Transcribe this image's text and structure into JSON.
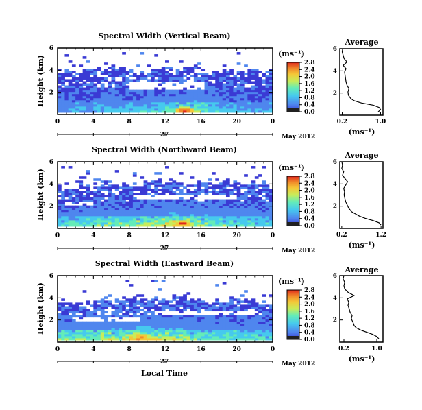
{
  "figure": {
    "xlabel": "Local Time",
    "date_label": "May 2012",
    "day_label": "27",
    "avg_title": "Average",
    "unit_label": "(ms⁻¹)"
  },
  "colormap": [
    "#e7e7e7",
    "#3a3ad4",
    "#4f86ee",
    "#46c9ee",
    "#64ecb8",
    "#c8ec5a",
    "#f4c838",
    "#f08a2a",
    "#e0281c"
  ],
  "chart_data": [
    {
      "type": "heatmap",
      "title": "Spectral Width (Vertical Beam)",
      "ylabel": "Height (km)",
      "xlim": [
        0,
        24
      ],
      "ylim": [
        0,
        6
      ],
      "xticks": [
        "0",
        "4",
        "8",
        "12",
        "16",
        "20",
        "0"
      ],
      "yticks": [
        "6",
        "4",
        "2"
      ],
      "colorbar": {
        "range": [
          0,
          2.8
        ],
        "ticks": [
          "2.8",
          "2.4",
          "2.0",
          "1.6",
          "1.2",
          "0.8",
          "0.4",
          "0.0"
        ]
      },
      "top_profile": [
        3.8,
        3.9,
        3.8,
        4.0,
        4.2,
        4.5,
        4.4,
        4.1,
        3.9,
        3.8,
        4.0,
        4.2,
        4.1,
        4.0,
        4.1,
        4.3,
        4.0,
        3.8,
        3.9,
        4.0,
        4.1,
        4.0,
        3.9,
        3.8,
        3.9
      ],
      "level": [
        0.35,
        0.4,
        0.45,
        0.4,
        0.5,
        0.55,
        0.55,
        0.5,
        0.6,
        0.7,
        0.75,
        0.8,
        0.9,
        1.0,
        1.1,
        1.2,
        0.9,
        0.7,
        0.6,
        0.5,
        0.5,
        0.45,
        0.4,
        0.4,
        0.35
      ],
      "hotspot": [
        14.2,
        0.35,
        2.8
      ],
      "gaps": [
        [
          8.0,
          16.5,
          2.3,
          3.0
        ]
      ],
      "average": {
        "title": "Average",
        "xlabel": "(ms⁻¹)",
        "xlim": [
          0.15,
          1.05
        ],
        "ylim": [
          0,
          6
        ],
        "xticks": [
          "0.2",
          "1.0"
        ],
        "xtick_values": [
          0.2,
          1.0
        ],
        "yticks": [
          "6",
          "4",
          "2"
        ],
        "height": [
          0.3,
          0.5,
          0.7,
          0.9,
          1.1,
          1.3,
          1.5,
          1.8,
          2.1,
          2.4,
          2.7,
          3.0,
          3.3,
          3.6,
          3.9,
          4.2,
          4.5,
          4.8,
          5.1,
          5.4,
          5.7,
          6.0
        ],
        "width": [
          0.95,
          1.0,
          0.97,
          0.85,
          0.6,
          0.45,
          0.38,
          0.33,
          0.32,
          0.34,
          0.3,
          0.28,
          0.27,
          0.26,
          0.25,
          0.28,
          0.22,
          0.3,
          0.24,
          0.22,
          0.2,
          0.21
        ]
      }
    },
    {
      "type": "heatmap",
      "title": "Spectral Width (Northward Beam)",
      "ylabel": "Height (km)",
      "xlim": [
        0,
        24
      ],
      "ylim": [
        0,
        6
      ],
      "xticks": [
        "0",
        "4",
        "8",
        "12",
        "16",
        "20",
        "0"
      ],
      "yticks": [
        "6",
        "4",
        "2"
      ],
      "colorbar": {
        "range": [
          0,
          2.8
        ],
        "ticks": [
          "2.8",
          "2.4",
          "2.0",
          "1.6",
          "1.2",
          "0.8",
          "0.4",
          "0.0"
        ]
      },
      "top_profile": [
        3.6,
        3.7,
        3.8,
        3.9,
        4.0,
        4.0,
        3.9,
        3.8,
        3.9,
        4.0,
        4.1,
        4.2,
        4.1,
        4.0,
        3.9,
        4.0,
        4.1,
        4.2,
        4.3,
        4.2,
        4.1,
        4.0,
        3.9,
        3.8,
        3.7
      ],
      "level": [
        0.8,
        0.85,
        0.8,
        0.9,
        0.95,
        1.0,
        1.0,
        0.95,
        1.0,
        1.1,
        1.2,
        1.3,
        1.4,
        1.5,
        1.5,
        1.3,
        1.1,
        1.0,
        0.9,
        0.85,
        0.8,
        0.8,
        0.75,
        0.7,
        0.7
      ],
      "hotspot": [
        14.0,
        0.45,
        2.8
      ],
      "gaps": [
        [
          1.0,
          4.0,
          2.1,
          2.4
        ],
        [
          9.0,
          20.0,
          2.6,
          3.0
        ]
      ],
      "average": {
        "title": "Average",
        "xlabel": "(ms⁻¹)",
        "xlim": [
          0.15,
          1.25
        ],
        "ylim": [
          0,
          6
        ],
        "xticks": [
          "0.2",
          "1.2"
        ],
        "xtick_values": [
          0.2,
          1.2
        ],
        "yticks": [
          "6",
          "4",
          "2"
        ],
        "height": [
          0.3,
          0.5,
          0.7,
          0.9,
          1.1,
          1.3,
          1.5,
          1.8,
          2.1,
          2.4,
          2.7,
          3.0,
          3.3,
          3.6,
          3.9,
          4.2,
          4.5,
          4.8,
          5.1,
          5.4,
          5.7,
          6.0
        ],
        "width": [
          1.2,
          1.15,
          1.0,
          0.8,
          0.65,
          0.55,
          0.45,
          0.38,
          0.34,
          0.3,
          0.28,
          0.26,
          0.27,
          0.25,
          0.3,
          0.35,
          0.28,
          0.22,
          0.25,
          0.2,
          0.22,
          0.2
        ]
      }
    },
    {
      "type": "heatmap",
      "title": "Spectral Width (Eastward Beam)",
      "ylabel": "Height (km)",
      "xlim": [
        0,
        24
      ],
      "ylim": [
        0,
        6
      ],
      "xticks": [
        "0",
        "4",
        "8",
        "12",
        "16",
        "20",
        "0"
      ],
      "yticks": [
        "6",
        "4",
        "2"
      ],
      "colorbar": {
        "range": [
          0,
          2.8
        ],
        "ticks": [
          "2.8",
          "2.4",
          "2.0",
          "1.6",
          "1.2",
          "0.8",
          "0.4",
          "0.0"
        ]
      },
      "top_profile": [
        3.4,
        3.5,
        3.6,
        3.5,
        3.7,
        3.8,
        3.9,
        4.0,
        4.1,
        4.2,
        4.0,
        3.9,
        4.0,
        4.3,
        4.1,
        3.9,
        3.8,
        3.7,
        3.8,
        3.9,
        3.8,
        3.7,
        3.6,
        3.5,
        3.6
      ],
      "level": [
        1.0,
        1.05,
        1.1,
        1.0,
        1.1,
        1.2,
        1.2,
        1.3,
        1.5,
        1.6,
        1.5,
        1.4,
        1.3,
        1.3,
        1.2,
        1.1,
        1.0,
        1.0,
        0.9,
        0.9,
        0.85,
        0.8,
        0.8,
        0.75,
        0.7
      ],
      "hotspot": [
        9.5,
        0.55,
        2.4
      ],
      "gaps": [
        [
          1.5,
          9.0,
          1.9,
          2.3
        ],
        [
          11.0,
          22.0,
          2.4,
          2.8
        ]
      ],
      "average": {
        "title": "Average",
        "xlabel": "(ms⁻¹)",
        "xlim": [
          0.1,
          1.15
        ],
        "ylim": [
          0,
          6
        ],
        "xticks": [
          "0.2",
          "1.0"
        ],
        "xtick_values": [
          0.2,
          1.0
        ],
        "yticks": [
          "6",
          "4",
          "2"
        ],
        "height": [
          0.3,
          0.5,
          0.7,
          0.9,
          1.1,
          1.3,
          1.5,
          1.8,
          2.1,
          2.4,
          2.7,
          3.0,
          3.3,
          3.6,
          3.9,
          4.2,
          4.5,
          4.8,
          5.1,
          5.4,
          5.7,
          6.0
        ],
        "width": [
          1.05,
          1.0,
          0.9,
          0.75,
          0.6,
          0.5,
          0.45,
          0.42,
          0.38,
          0.4,
          0.35,
          0.33,
          0.3,
          0.32,
          0.28,
          0.45,
          0.3,
          0.22,
          0.2,
          0.22,
          0.18,
          0.2
        ]
      }
    }
  ]
}
